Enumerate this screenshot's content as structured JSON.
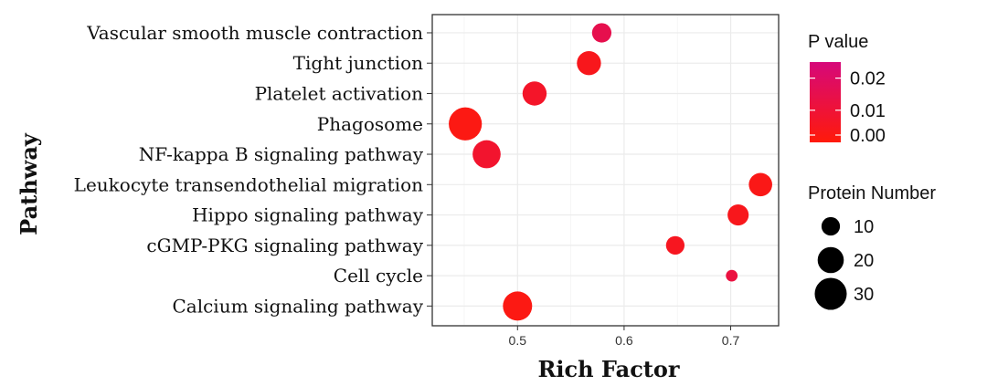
{
  "chart_data": {
    "type": "scatter",
    "xlabel": "Rich Factor",
    "ylabel": "Pathway",
    "xlim": [
      0.42,
      0.745
    ],
    "xticks": [
      {
        "value": 0.5,
        "label": "0.5"
      },
      {
        "value": 0.6,
        "label": "0.6"
      },
      {
        "value": 0.7,
        "label": "0.7"
      }
    ],
    "categories": [
      "Vascular smooth muscle contraction",
      "Tight junction",
      "Platelet activation",
      "Phagosome",
      "NF-kappa B  signaling pathway",
      "Leukocyte transendothelial migration",
      "Hippo signaling pathway",
      "cGMP-PKG signaling pathway",
      "Cell cycle",
      "Calcium signaling pathway"
    ],
    "points": [
      {
        "pathway": "Vascular smooth muscle contraction",
        "rich_factor": 0.579,
        "protein_number": 11,
        "p_value": 0.015
      },
      {
        "pathway": "Tight junction",
        "rich_factor": 0.567,
        "protein_number": 17,
        "p_value": 0.004
      },
      {
        "pathway": "Platelet activation",
        "rich_factor": 0.516,
        "protein_number": 17,
        "p_value": 0.007
      },
      {
        "pathway": "Phagosome",
        "rich_factor": 0.451,
        "protein_number": 32,
        "p_value": 0.002
      },
      {
        "pathway": "NF-kappa B  signaling pathway",
        "rich_factor": 0.471,
        "protein_number": 23,
        "p_value": 0.008
      },
      {
        "pathway": "Leukocyte transendothelial migration",
        "rich_factor": 0.728,
        "protein_number": 16,
        "p_value": 0.003
      },
      {
        "pathway": "Hippo signaling pathway",
        "rich_factor": 0.707,
        "protein_number": 13,
        "p_value": 0.004
      },
      {
        "pathway": "cGMP-PKG signaling pathway",
        "rich_factor": 0.648,
        "protein_number": 10,
        "p_value": 0.005
      },
      {
        "pathway": "Cell cycle",
        "rich_factor": 0.701,
        "protein_number": 4,
        "p_value": 0.012
      },
      {
        "pathway": "Calcium signaling pathway",
        "rich_factor": 0.5,
        "protein_number": 25,
        "p_value": 0.002
      }
    ],
    "color_legend": {
      "title": "P value",
      "range": [
        0.0,
        0.025
      ],
      "ticks": [
        {
          "value": 0.02,
          "label": "0.02"
        },
        {
          "value": 0.01,
          "label": "0.01"
        },
        {
          "value": 0.0,
          "label": "0.00"
        }
      ],
      "color_low": "#ff1a0a",
      "color_high": "#d6087a"
    },
    "size_legend": {
      "title": "Protein Number",
      "entries": [
        {
          "value": 10,
          "label": "10"
        },
        {
          "value": 20,
          "label": "20"
        },
        {
          "value": 30,
          "label": "30"
        }
      ]
    },
    "grid": true,
    "panel_background": "#ffffff",
    "grid_color": "#ebebeb"
  }
}
